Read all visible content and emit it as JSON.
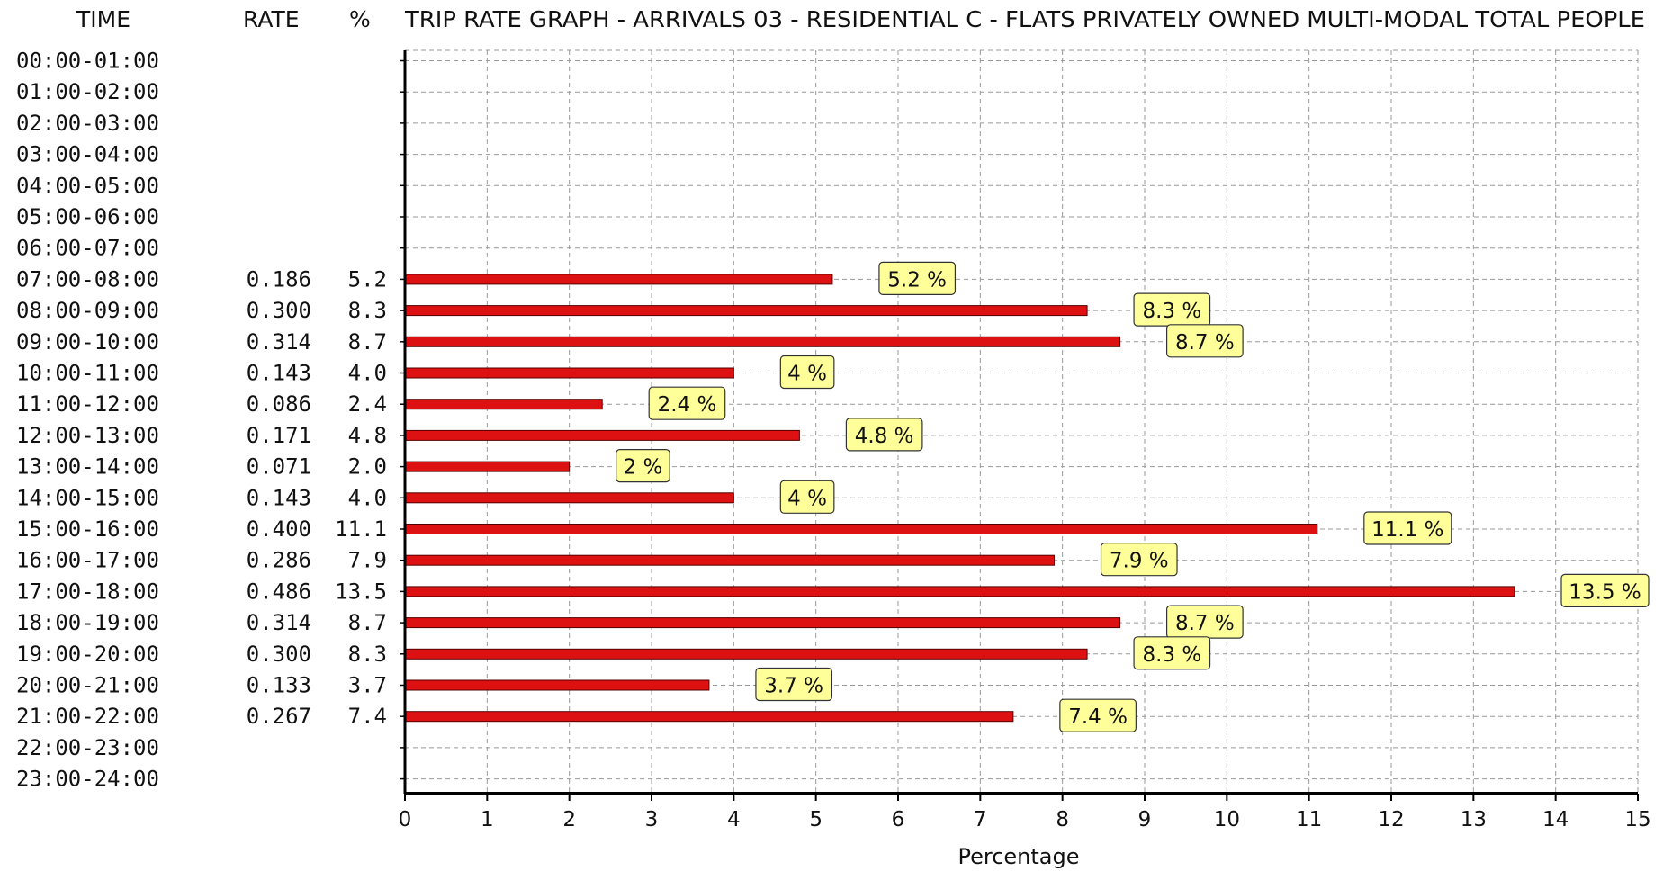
{
  "headers": {
    "time": "TIME",
    "rate": "RATE",
    "percent": "%",
    "title": "TRIP RATE GRAPH - ARRIVALS   03 - RESIDENTIAL   C - FLATS PRIVATELY OWNED      MULTI-MODAL  TOTAL PEOPLE"
  },
  "chart_data": {
    "type": "bar",
    "orientation": "horizontal",
    "title": "TRIP RATE GRAPH - ARRIVALS   03 - RESIDENTIAL   C - FLATS PRIVATELY OWNED      MULTI-MODAL  TOTAL PEOPLE",
    "xlabel": "Percentage",
    "xlim": [
      0,
      15
    ],
    "xticks": [
      "0",
      "1",
      "2",
      "3",
      "4",
      "5",
      "6",
      "7",
      "8",
      "9",
      "10",
      "11",
      "12",
      "13",
      "14",
      "15"
    ],
    "grid": true,
    "colors": {
      "bar": "#dd1111",
      "label_bg": "#ffff99",
      "grid": "#999999"
    },
    "rows": [
      {
        "time": "00:00-01:00",
        "rate": "",
        "pct": "",
        "value": null,
        "label": ""
      },
      {
        "time": "01:00-02:00",
        "rate": "",
        "pct": "",
        "value": null,
        "label": ""
      },
      {
        "time": "02:00-03:00",
        "rate": "",
        "pct": "",
        "value": null,
        "label": ""
      },
      {
        "time": "03:00-04:00",
        "rate": "",
        "pct": "",
        "value": null,
        "label": ""
      },
      {
        "time": "04:00-05:00",
        "rate": "",
        "pct": "",
        "value": null,
        "label": ""
      },
      {
        "time": "05:00-06:00",
        "rate": "",
        "pct": "",
        "value": null,
        "label": ""
      },
      {
        "time": "06:00-07:00",
        "rate": "",
        "pct": "",
        "value": null,
        "label": ""
      },
      {
        "time": "07:00-08:00",
        "rate": "0.186",
        "pct": "5.2",
        "value": 5.2,
        "label": "5.2 %"
      },
      {
        "time": "08:00-09:00",
        "rate": "0.300",
        "pct": "8.3",
        "value": 8.3,
        "label": "8.3 %"
      },
      {
        "time": "09:00-10:00",
        "rate": "0.314",
        "pct": "8.7",
        "value": 8.7,
        "label": "8.7 %"
      },
      {
        "time": "10:00-11:00",
        "rate": "0.143",
        "pct": "4.0",
        "value": 4.0,
        "label": "4 %"
      },
      {
        "time": "11:00-12:00",
        "rate": "0.086",
        "pct": "2.4",
        "value": 2.4,
        "label": "2.4 %"
      },
      {
        "time": "12:00-13:00",
        "rate": "0.171",
        "pct": "4.8",
        "value": 4.8,
        "label": "4.8 %"
      },
      {
        "time": "13:00-14:00",
        "rate": "0.071",
        "pct": "2.0",
        "value": 2.0,
        "label": "2 %"
      },
      {
        "time": "14:00-15:00",
        "rate": "0.143",
        "pct": "4.0",
        "value": 4.0,
        "label": "4 %"
      },
      {
        "time": "15:00-16:00",
        "rate": "0.400",
        "pct": "11.1",
        "value": 11.1,
        "label": "11.1 %"
      },
      {
        "time": "16:00-17:00",
        "rate": "0.286",
        "pct": "7.9",
        "value": 7.9,
        "label": "7.9 %"
      },
      {
        "time": "17:00-18:00",
        "rate": "0.486",
        "pct": "13.5",
        "value": 13.5,
        "label": "13.5 %"
      },
      {
        "time": "18:00-19:00",
        "rate": "0.314",
        "pct": "8.7",
        "value": 8.7,
        "label": "8.7 %"
      },
      {
        "time": "19:00-20:00",
        "rate": "0.300",
        "pct": "8.3",
        "value": 8.3,
        "label": "8.3 %"
      },
      {
        "time": "20:00-21:00",
        "rate": "0.133",
        "pct": "3.7",
        "value": 3.7,
        "label": "3.7 %"
      },
      {
        "time": "21:00-22:00",
        "rate": "0.267",
        "pct": "7.4",
        "value": 7.4,
        "label": "7.4 %"
      },
      {
        "time": "22:00-23:00",
        "rate": "",
        "pct": "",
        "value": null,
        "label": ""
      },
      {
        "time": "23:00-24:00",
        "rate": "",
        "pct": "",
        "value": null,
        "label": ""
      }
    ]
  }
}
